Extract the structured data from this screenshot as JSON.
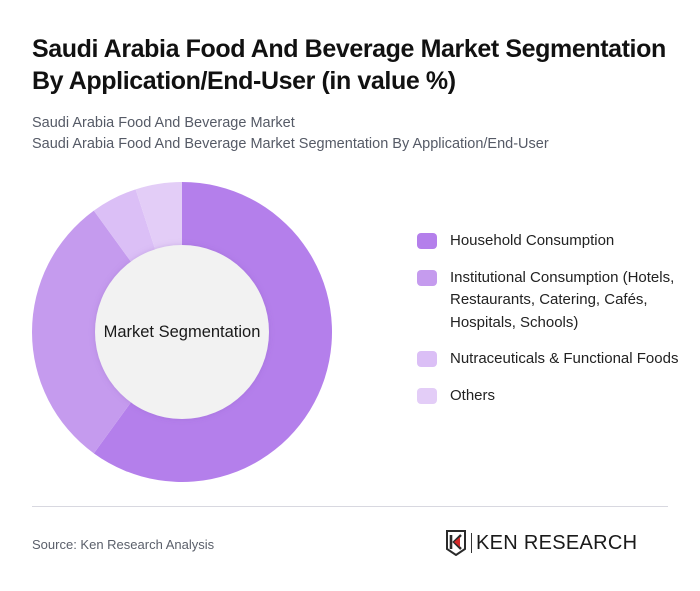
{
  "header": {
    "title": "Saudi Arabia Food And Beverage Market Segmentation By Application/End-User (in value %)",
    "subtitle_line1": "Saudi Arabia Food And Beverage Market",
    "subtitle_line2": "Saudi Arabia Food And Beverage Market Segmentation By Application/End-User"
  },
  "chart": {
    "center_label": "Market Segmentation"
  },
  "legend": {
    "items": [
      {
        "label": "Household Consumption",
        "color": "#b47feb"
      },
      {
        "label": "Institutional Consumption (Hotels, Restaurants, Catering, Cafés, Hospitals, Schools)",
        "color": "#c59bee"
      },
      {
        "label": "Nutraceuticals & Functional Foods",
        "color": "#dbbff6"
      },
      {
        "label": "Others",
        "color": "#e3cdf7"
      }
    ]
  },
  "footer": {
    "source": "Source: Ken Research Analysis",
    "logo_text": "KEN RESEARCH"
  },
  "chart_data": {
    "type": "pie",
    "variant": "donut",
    "title": "Saudi Arabia Food And Beverage Market Segmentation By Application/End-User (in value %)",
    "subtitle": "Saudi Arabia Food And Beverage Market Segmentation By Application/End-User",
    "center_label": "Market Segmentation",
    "categories": [
      "Household Consumption",
      "Institutional Consumption (Hotels, Restaurants, Catering, Cafés, Hospitals, Schools)",
      "Nutraceuticals & Functional Foods",
      "Others"
    ],
    "values": [
      60,
      30,
      5,
      5
    ],
    "unit": "%",
    "colors": [
      "#b47feb",
      "#c59bee",
      "#dbbff6",
      "#e3cdf7"
    ],
    "legend_position": "right",
    "source": "Source: Ken Research Analysis"
  }
}
